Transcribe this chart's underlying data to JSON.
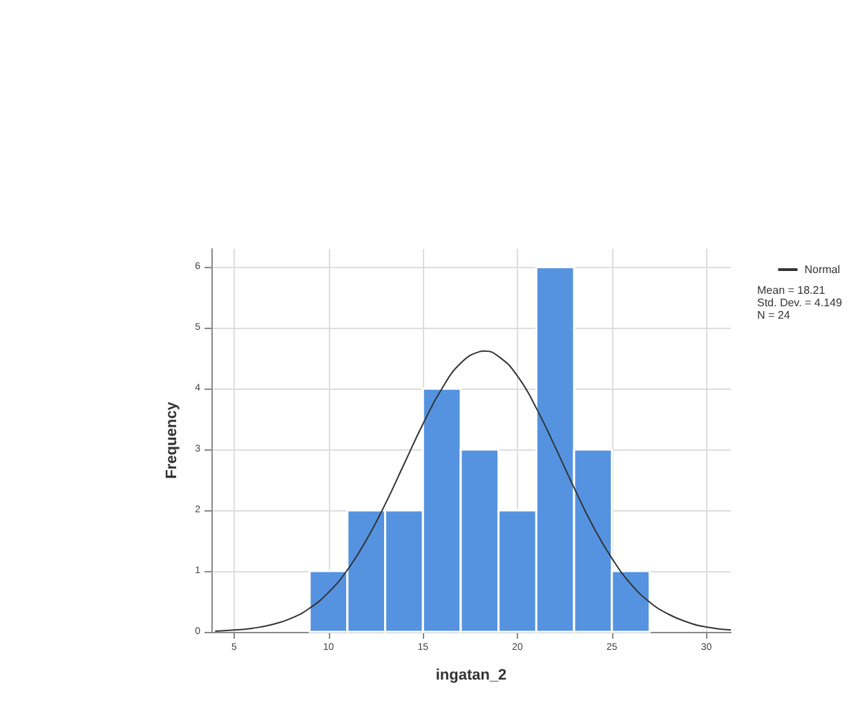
{
  "chart_data": {
    "type": "histogram",
    "xlabel": "ingatan_2",
    "ylabel": "Frequency",
    "bins": [
      9,
      11,
      13,
      15,
      17,
      19,
      21,
      23,
      25,
      27
    ],
    "values": [
      1,
      2,
      2,
      4,
      3,
      2,
      6,
      3,
      1
    ],
    "color": "#5593e0",
    "series": [
      {
        "name": "Normal",
        "type": "line",
        "color": "#333333",
        "x": [
          4,
          5,
          6,
          7,
          8,
          9,
          10,
          11,
          12,
          13,
          14,
          15,
          16,
          17,
          18,
          18.21,
          19,
          20,
          21,
          22,
          23,
          24,
          25,
          26,
          27,
          28,
          29,
          30,
          31.3
        ],
        "values": [
          0.01,
          0.03,
          0.06,
          0.12,
          0.22,
          0.39,
          0.65,
          1.02,
          1.51,
          2.1,
          2.76,
          3.42,
          4.0,
          4.42,
          4.61,
          4.62,
          4.53,
          4.21,
          3.68,
          3.04,
          2.37,
          1.74,
          1.21,
          0.79,
          0.49,
          0.29,
          0.16,
          0.08,
          0.03
        ]
      }
    ],
    "xlim": [
      3.8,
      31.3
    ],
    "xticks": [
      5,
      10,
      15,
      20,
      25,
      30
    ],
    "ylim": [
      0,
      6.3
    ],
    "yticks": [
      0,
      1,
      2,
      3,
      4,
      5,
      6
    ],
    "grid": true,
    "legend": "top right",
    "marker": "none",
    "line_style": "solid",
    "annotations": [
      "Mean = 18.21",
      "Std. Dev. = 4.149",
      "N = 24"
    ]
  }
}
